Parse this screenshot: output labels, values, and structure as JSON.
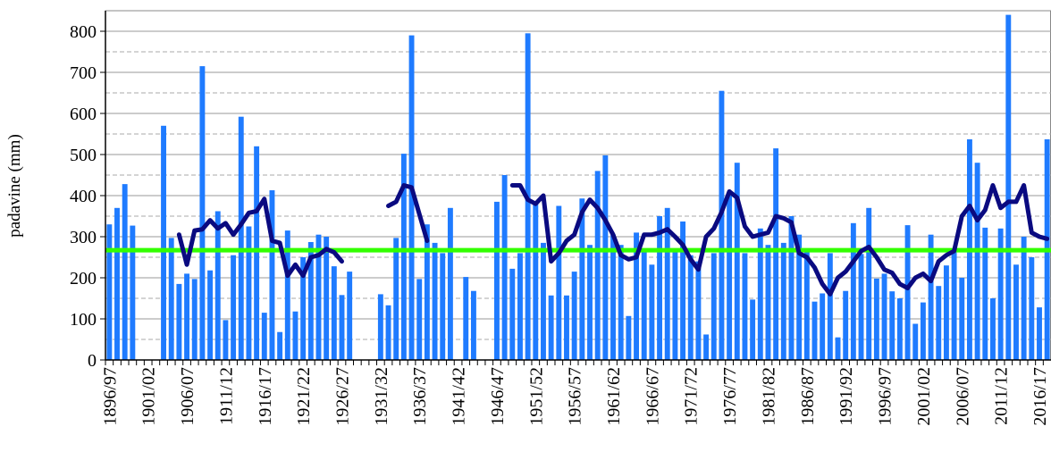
{
  "chart_data": {
    "type": "bar",
    "y_label": "padavine (mm)",
    "categories": [
      "1896/97",
      null,
      null,
      null,
      null,
      "1901/02",
      null,
      null,
      null,
      null,
      "1906/07",
      null,
      null,
      null,
      null,
      "1911/12",
      null,
      null,
      null,
      null,
      "1916/17",
      null,
      null,
      null,
      null,
      "1921/22",
      null,
      null,
      null,
      null,
      "1926/27",
      null,
      null,
      null,
      null,
      "1931/32",
      null,
      null,
      null,
      null,
      "1936/37",
      null,
      null,
      null,
      null,
      "1941/42",
      null,
      null,
      null,
      null,
      "1946/47",
      null,
      null,
      null,
      null,
      "1951/52",
      null,
      null,
      null,
      null,
      "1956/57",
      null,
      null,
      null,
      null,
      "1961/62",
      null,
      null,
      null,
      null,
      "1966/67",
      null,
      null,
      null,
      null,
      "1971/72",
      null,
      null,
      null,
      null,
      "1976/77",
      null,
      null,
      null,
      null,
      "1981/82",
      null,
      null,
      null,
      null,
      "1986/87",
      null,
      null,
      null,
      null,
      "1991/92",
      null,
      null,
      null,
      null,
      "1996/97",
      null,
      null,
      null,
      null,
      "2001/02",
      null,
      null,
      null,
      null,
      "2006/07",
      null,
      null,
      null,
      null,
      "2011/12",
      null,
      null,
      null,
      null,
      "2016/17",
      null
    ],
    "series": [
      {
        "type": "bar",
        "color": "#1f7bff",
        "values": [
          330,
          370,
          428,
          327,
          null,
          null,
          null,
          570,
          297,
          185,
          210,
          197,
          715,
          218,
          362,
          97,
          255,
          592,
          325,
          520,
          115,
          413,
          68,
          315,
          118,
          250,
          287,
          305,
          300,
          228,
          158,
          215,
          null,
          null,
          null,
          160,
          133,
          297,
          502,
          790,
          197,
          330,
          285,
          260,
          370,
          null,
          202,
          168,
          null,
          null,
          385,
          450,
          222,
          260,
          795,
          380,
          285,
          157,
          375,
          157,
          215,
          393,
          280,
          460,
          498,
          305,
          280,
          107,
          310,
          265,
          232,
          350,
          370,
          265,
          337,
          255,
          240,
          62,
          260,
          655,
          400,
          480,
          260,
          147,
          320,
          280,
          515,
          285,
          350,
          305,
          270,
          142,
          162,
          260,
          55,
          168,
          333,
          258,
          370,
          198,
          210,
          167,
          150,
          328,
          88,
          140,
          305,
          180,
          230,
          265,
          200,
          537,
          480,
          322,
          150,
          320,
          840,
          232,
          300,
          250,
          128,
          537
        ]
      },
      {
        "type": "line",
        "color": "#0a0a80",
        "values": [
          null,
          null,
          null,
          null,
          null,
          null,
          null,
          null,
          null,
          305,
          232,
          315,
          318,
          340,
          320,
          333,
          305,
          330,
          358,
          362,
          392,
          290,
          285,
          205,
          232,
          205,
          250,
          255,
          270,
          262,
          240,
          null,
          null,
          null,
          null,
          null,
          375,
          385,
          425,
          420,
          355,
          290,
          null,
          null,
          null,
          null,
          null,
          null,
          null,
          null,
          null,
          null,
          425,
          425,
          390,
          380,
          400,
          240,
          260,
          290,
          305,
          360,
          390,
          370,
          340,
          305,
          255,
          245,
          250,
          305,
          305,
          310,
          318,
          300,
          280,
          245,
          220,
          300,
          320,
          360,
          410,
          395,
          325,
          300,
          305,
          310,
          350,
          345,
          335,
          260,
          250,
          225,
          185,
          160,
          200,
          215,
          240,
          265,
          275,
          250,
          220,
          212,
          185,
          175,
          200,
          210,
          192,
          240,
          255,
          265,
          350,
          375,
          340,
          365,
          425,
          370,
          385,
          385,
          425,
          310,
          300,
          295
        ]
      }
    ],
    "mean_line": {
      "value": 267,
      "color": "#33ff00"
    },
    "ylim": [
      0,
      850
    ],
    "yticks": [
      0,
      100,
      200,
      300,
      400,
      500,
      600,
      700,
      800
    ],
    "minor_yticks": [
      50,
      150,
      250,
      350,
      450,
      550,
      650,
      750
    ],
    "grid": true
  }
}
